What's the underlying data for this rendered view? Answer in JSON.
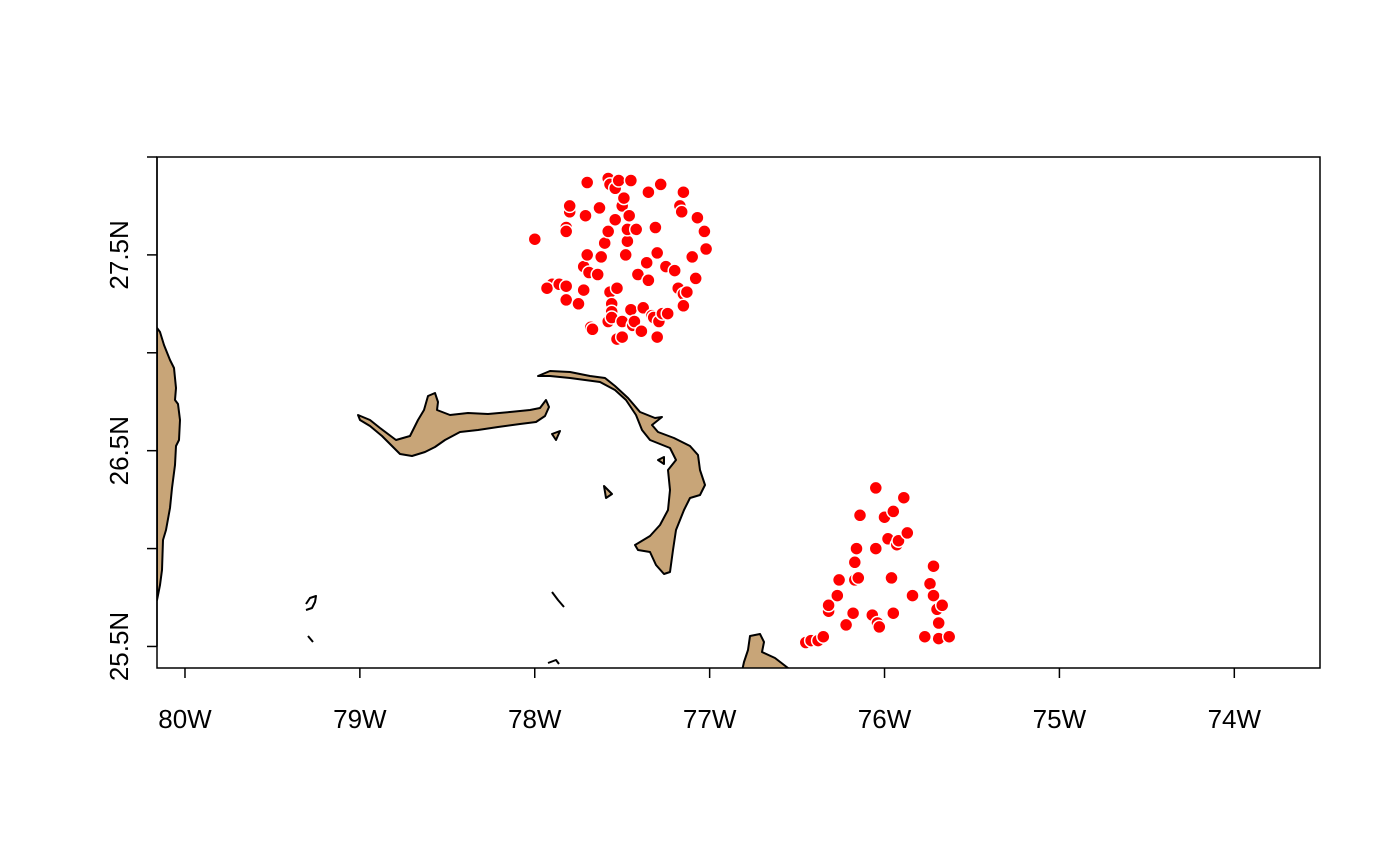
{
  "map": {
    "lon_range": [
      -80.16,
      -73.51
    ],
    "lat_range": [
      25.39,
      28.0
    ],
    "land_color": "#C8A578",
    "point_color": "#FF0000",
    "point_outline_color": "#FFFFFF",
    "x_ticks": [
      {
        "lon": -80,
        "label": "80W"
      },
      {
        "lon": -79,
        "label": "79W"
      },
      {
        "lon": -78,
        "label": "78W"
      },
      {
        "lon": -77,
        "label": "77W"
      },
      {
        "lon": -76,
        "label": "76W"
      },
      {
        "lon": -75,
        "label": "75W"
      },
      {
        "lon": -74,
        "label": "74W"
      }
    ],
    "y_ticks": [
      {
        "lat": 25.5,
        "label": "25.5N"
      },
      {
        "lat": 26.0,
        "label": ""
      },
      {
        "lat": 26.5,
        "label": "26.5N"
      },
      {
        "lat": 27.0,
        "label": ""
      },
      {
        "lat": 27.5,
        "label": "27.5N"
      },
      {
        "lat": 28.0,
        "label": ""
      }
    ]
  },
  "chart_data": {
    "type": "scatter",
    "title": "",
    "xlabel": "",
    "ylabel": "",
    "xlim": [
      -80.16,
      -73.51
    ],
    "ylim": [
      25.39,
      28.0
    ],
    "grid": false,
    "series": [
      {
        "points": [
          [
            -78.0,
            27.58
          ],
          [
            -77.9,
            27.35
          ],
          [
            -77.93,
            27.33
          ],
          [
            -77.86,
            27.35
          ],
          [
            -77.82,
            27.34
          ],
          [
            -77.82,
            27.27
          ],
          [
            -77.8,
            27.72
          ],
          [
            -77.8,
            27.75
          ],
          [
            -77.82,
            27.64
          ],
          [
            -77.82,
            27.62
          ],
          [
            -77.75,
            27.25
          ],
          [
            -77.72,
            27.32
          ],
          [
            -77.72,
            27.44
          ],
          [
            -77.71,
            27.7
          ],
          [
            -77.7,
            27.87
          ],
          [
            -77.7,
            27.5
          ],
          [
            -77.69,
            27.41
          ],
          [
            -77.68,
            27.13
          ],
          [
            -77.67,
            27.12
          ],
          [
            -77.64,
            27.4
          ],
          [
            -77.63,
            27.74
          ],
          [
            -77.62,
            27.49
          ],
          [
            -77.6,
            27.56
          ],
          [
            -77.58,
            27.16
          ],
          [
            -77.58,
            27.62
          ],
          [
            -77.58,
            27.89
          ],
          [
            -77.57,
            27.86
          ],
          [
            -77.57,
            27.31
          ],
          [
            -77.56,
            27.25
          ],
          [
            -77.56,
            27.21
          ],
          [
            -77.56,
            27.18
          ],
          [
            -77.54,
            27.84
          ],
          [
            -77.54,
            27.68
          ],
          [
            -77.53,
            27.33
          ],
          [
            -77.53,
            27.07
          ],
          [
            -77.52,
            27.88
          ],
          [
            -77.5,
            27.08
          ],
          [
            -77.5,
            27.16
          ],
          [
            -77.5,
            27.75
          ],
          [
            -77.49,
            27.79
          ],
          [
            -77.48,
            27.5
          ],
          [
            -77.47,
            27.57
          ],
          [
            -77.47,
            27.63
          ],
          [
            -77.46,
            27.7
          ],
          [
            -77.45,
            27.88
          ],
          [
            -77.45,
            27.22
          ],
          [
            -77.44,
            27.14
          ],
          [
            -77.43,
            27.16
          ],
          [
            -77.42,
            27.63
          ],
          [
            -77.41,
            27.4
          ],
          [
            -77.39,
            27.11
          ],
          [
            -77.38,
            27.23
          ],
          [
            -77.36,
            27.46
          ],
          [
            -77.35,
            27.37
          ],
          [
            -77.35,
            27.82
          ],
          [
            -77.33,
            27.19
          ],
          [
            -77.32,
            27.18
          ],
          [
            -77.31,
            27.64
          ],
          [
            -77.3,
            27.51
          ],
          [
            -77.3,
            27.08
          ],
          [
            -77.29,
            27.16
          ],
          [
            -77.28,
            27.86
          ],
          [
            -77.27,
            27.2
          ],
          [
            -77.25,
            27.44
          ],
          [
            -77.24,
            27.2
          ],
          [
            -77.2,
            27.42
          ],
          [
            -77.18,
            27.33
          ],
          [
            -77.17,
            27.75
          ],
          [
            -77.16,
            27.72
          ],
          [
            -77.15,
            27.3
          ],
          [
            -77.15,
            27.24
          ],
          [
            -77.15,
            27.82
          ],
          [
            -77.13,
            27.31
          ],
          [
            -77.1,
            27.49
          ],
          [
            -77.08,
            27.38
          ],
          [
            -77.07,
            27.69
          ],
          [
            -77.03,
            27.62
          ],
          [
            -77.02,
            27.53
          ],
          [
            -76.45,
            25.52
          ],
          [
            -76.42,
            25.53
          ],
          [
            -76.38,
            25.53
          ],
          [
            -76.35,
            25.55
          ],
          [
            -76.32,
            25.68
          ],
          [
            -76.32,
            25.71
          ],
          [
            -76.27,
            25.76
          ],
          [
            -76.26,
            25.84
          ],
          [
            -76.22,
            25.61
          ],
          [
            -76.18,
            25.67
          ],
          [
            -76.17,
            25.84
          ],
          [
            -76.17,
            25.93
          ],
          [
            -76.16,
            26.0
          ],
          [
            -76.15,
            25.85
          ],
          [
            -76.14,
            26.17
          ],
          [
            -76.07,
            25.66
          ],
          [
            -76.05,
            26.31
          ],
          [
            -76.05,
            26.0
          ],
          [
            -76.04,
            25.62
          ],
          [
            -76.03,
            25.6
          ],
          [
            -76.0,
            26.16
          ],
          [
            -75.98,
            26.05
          ],
          [
            -75.96,
            25.85
          ],
          [
            -75.95,
            25.67
          ],
          [
            -75.95,
            26.19
          ],
          [
            -75.93,
            26.02
          ],
          [
            -75.92,
            26.04
          ],
          [
            -75.89,
            26.26
          ],
          [
            -75.87,
            26.08
          ],
          [
            -75.84,
            25.76
          ],
          [
            -75.77,
            25.55
          ],
          [
            -75.74,
            25.82
          ],
          [
            -75.72,
            25.91
          ],
          [
            -75.72,
            25.76
          ],
          [
            -75.7,
            25.69
          ],
          [
            -75.69,
            25.54
          ],
          [
            -75.69,
            25.62
          ],
          [
            -75.67,
            25.71
          ],
          [
            -75.63,
            25.55
          ]
        ]
      }
    ]
  }
}
